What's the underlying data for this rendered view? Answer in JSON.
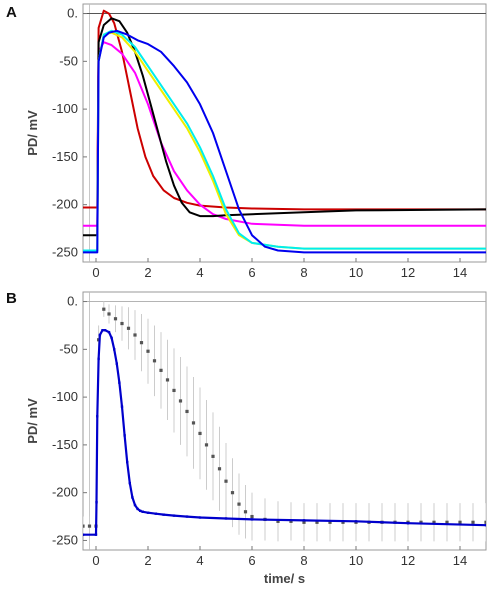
{
  "figure": {
    "panel_a_label": "A",
    "panel_b_label": "B"
  },
  "chart_data": [
    {
      "panel": "A",
      "type": "line",
      "xlabel": "",
      "ylabel": "PD/ mV",
      "xlim": [
        -0.5,
        15
      ],
      "ylim": [
        -260,
        10
      ],
      "x_ticks": [
        0,
        2,
        4,
        6,
        8,
        10,
        12,
        14
      ],
      "x_tick_labels": [
        "0",
        "2",
        "4",
        "6",
        "8",
        "10",
        "12",
        "14"
      ],
      "y_ticks": [
        0,
        -50,
        -100,
        -150,
        -200,
        -250
      ],
      "y_tick_labels": [
        "0.",
        "-50",
        "-100",
        "-150",
        "-200",
        "-250"
      ],
      "reference_line_y": 0,
      "series": [
        {
          "color": "#cc0000",
          "x": [
            -0.5,
            0.05,
            0.1,
            0.3,
            0.5,
            0.7,
            1.0,
            1.3,
            1.6,
            1.9,
            2.2,
            2.6,
            3.0,
            3.5,
            4.0,
            5.0,
            6.0,
            8.0,
            10.0,
            15.0
          ],
          "y": [
            -203,
            -203,
            -15,
            3,
            0,
            -10,
            -40,
            -80,
            -120,
            -150,
            -170,
            -185,
            -193,
            -198,
            -201,
            -203,
            -204,
            -205,
            -205,
            -205
          ]
        },
        {
          "color": "#ff00ff",
          "x": [
            -0.5,
            0.05,
            0.1,
            0.3,
            0.6,
            1.0,
            1.5,
            2.0,
            2.5,
            3.0,
            3.5,
            4.0,
            4.5,
            5.0,
            6.0,
            8.0,
            10.0,
            15.0
          ],
          "y": [
            -222,
            -222,
            -40,
            -30,
            -33,
            -42,
            -62,
            -95,
            -135,
            -165,
            -185,
            -200,
            -210,
            -215,
            -220,
            -222,
            -222,
            -222
          ]
        },
        {
          "color": "#000000",
          "x": [
            -0.5,
            0.05,
            0.1,
            0.3,
            0.6,
            0.9,
            1.2,
            1.5,
            1.8,
            2.1,
            2.4,
            2.7,
            3.0,
            3.3,
            3.6,
            4.0,
            4.5,
            5.0,
            6.0,
            8.0,
            10.0,
            15.0
          ],
          "y": [
            -232,
            -232,
            -30,
            -12,
            -5,
            -8,
            -20,
            -40,
            -65,
            -95,
            -125,
            -155,
            -180,
            -198,
            -208,
            -212,
            -212,
            -211,
            -210,
            -208,
            -206,
            -205
          ]
        },
        {
          "color": "#eeee00",
          "x": [
            -0.5,
            0.05,
            0.1,
            0.3,
            0.6,
            1.0,
            1.5,
            2.0,
            2.5,
            3.0,
            3.5,
            4.0,
            4.5,
            5.0,
            5.5,
            6.0,
            7.0,
            8.0,
            10.0,
            15.0
          ],
          "y": [
            -248,
            -248,
            -50,
            -22,
            -20,
            -25,
            -40,
            -60,
            -80,
            -100,
            -120,
            -145,
            -175,
            -210,
            -232,
            -240,
            -244,
            -246,
            -246,
            -246
          ]
        },
        {
          "color": "#00eeee",
          "x": [
            -0.5,
            0.05,
            0.1,
            0.3,
            0.6,
            1.0,
            1.5,
            2.0,
            2.5,
            3.0,
            3.5,
            4.0,
            4.5,
            5.0,
            5.5,
            6.0,
            7.0,
            8.0,
            10.0,
            15.0
          ],
          "y": [
            -248,
            -248,
            -50,
            -22,
            -18,
            -22,
            -35,
            -55,
            -75,
            -95,
            -115,
            -140,
            -170,
            -205,
            -230,
            -240,
            -244,
            -246,
            -246,
            -246
          ]
        },
        {
          "color": "#0000ee",
          "x": [
            -0.5,
            0.05,
            0.1,
            0.3,
            0.5,
            0.8,
            1.2,
            1.6,
            2.0,
            2.5,
            3.0,
            3.5,
            4.0,
            4.5,
            5.0,
            5.5,
            6.0,
            6.5,
            7.0,
            8.0,
            10.0,
            15.0
          ],
          "y": [
            -250,
            -250,
            -50,
            -25,
            -20,
            -18,
            -22,
            -28,
            -32,
            -40,
            -55,
            -72,
            -95,
            -125,
            -165,
            -205,
            -232,
            -244,
            -248,
            -250,
            -250,
            -250
          ]
        }
      ]
    },
    {
      "panel": "B",
      "type": "scatter",
      "xlabel": "time/ s",
      "ylabel": "PD/ mV",
      "xlim": [
        -0.5,
        15
      ],
      "ylim": [
        -260,
        10
      ],
      "x_ticks": [
        0,
        2,
        4,
        6,
        8,
        10,
        12,
        14
      ],
      "x_tick_labels": [
        "0",
        "2",
        "4",
        "6",
        "8",
        "10",
        "12",
        "14"
      ],
      "y_ticks": [
        0,
        -50,
        -100,
        -150,
        -200,
        -250
      ],
      "y_tick_labels": [
        "0.",
        "-50",
        "-100",
        "-150",
        "-200",
        "-250"
      ],
      "reference_line_y": 0,
      "series": [
        {
          "kind": "points_with_error_bars",
          "color": "#555555",
          "error_color": "#cccccc",
          "x": [
            -0.5,
            -0.25,
            0.0,
            0.1,
            0.3,
            0.5,
            0.75,
            1.0,
            1.25,
            1.5,
            1.75,
            2.0,
            2.25,
            2.5,
            2.75,
            3.0,
            3.25,
            3.5,
            3.75,
            4.0,
            4.25,
            4.5,
            4.75,
            5.0,
            5.25,
            5.5,
            5.75,
            6.0,
            6.5,
            7.0,
            7.5,
            8.0,
            8.5,
            9.0,
            9.5,
            10.0,
            10.5,
            11.0,
            11.5,
            12.0,
            12.5,
            13.0,
            13.5,
            14.0,
            14.5,
            15.0
          ],
          "y": [
            -235,
            -235,
            -235,
            -40,
            -8,
            -13,
            -18,
            -23,
            -28,
            -35,
            -43,
            -52,
            -62,
            -72,
            -82,
            -93,
            -104,
            -115,
            -127,
            -138,
            -150,
            -162,
            -175,
            -188,
            -200,
            -212,
            -220,
            -225,
            -228,
            -230,
            -230,
            -231,
            -231,
            -231,
            -231,
            -231,
            -231,
            -231,
            -231,
            -231,
            -231,
            -231,
            -231,
            -231,
            -231,
            -231
          ],
          "error": [
            10,
            10,
            10,
            15,
            8,
            10,
            14,
            18,
            22,
            26,
            30,
            34,
            37,
            40,
            42,
            44,
            46,
            47,
            48,
            48,
            47,
            46,
            44,
            40,
            36,
            32,
            28,
            25,
            22,
            21,
            20,
            20,
            20,
            20,
            20,
            20,
            20,
            20,
            20,
            20,
            20,
            20,
            20,
            20,
            20,
            20
          ]
        },
        {
          "kind": "dense_points",
          "color": "#0000cc",
          "x": [
            -0.5,
            0.0,
            0.02,
            0.05,
            0.1,
            0.15,
            0.25,
            0.35,
            0.5,
            0.6,
            0.7,
            0.8,
            0.9,
            1.0,
            1.1,
            1.2,
            1.3,
            1.4,
            1.5,
            1.6,
            1.7,
            1.8,
            2.0,
            2.3,
            2.6,
            3.0,
            3.5,
            4.0,
            5.0,
            6.0,
            8.0,
            10.0,
            12.0,
            15.0
          ],
          "y": [
            -244,
            -244,
            -210,
            -120,
            -60,
            -35,
            -30,
            -30,
            -32,
            -38,
            -50,
            -65,
            -85,
            -110,
            -140,
            -168,
            -190,
            -205,
            -213,
            -217,
            -219,
            -220,
            -221,
            -222,
            -223,
            -224,
            -225,
            -226,
            -227,
            -228,
            -229,
            -230,
            -232,
            -234
          ]
        }
      ]
    }
  ]
}
